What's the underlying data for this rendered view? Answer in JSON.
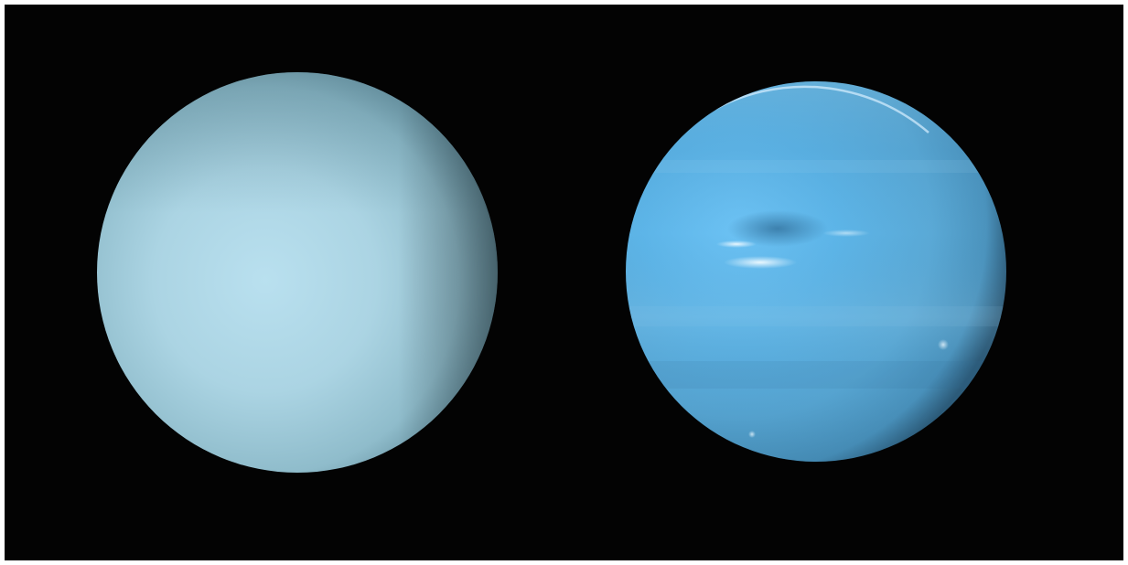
{
  "image": {
    "background_color": "#030303",
    "border_color": "#ffffff",
    "planets": [
      {
        "id": "left",
        "base_color": "#a9d2e2",
        "highlight_color": "#b9e0ef",
        "shadow_color": "#5f8795",
        "limb_color": "#2b3d44"
      },
      {
        "id": "right",
        "base_color": "#5eb3e2",
        "highlight_color": "#66bdf2",
        "shadow_color": "#3f8db8",
        "limb_color": "#1c3a4e",
        "features": [
          "dark-spot",
          "white-clouds",
          "banding"
        ]
      }
    ]
  }
}
